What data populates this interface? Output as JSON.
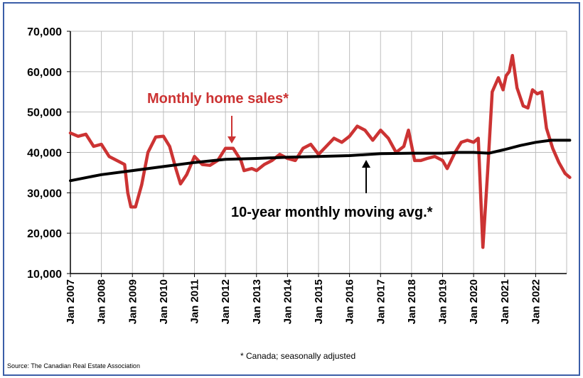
{
  "chart_data": {
    "type": "line",
    "title": "",
    "xlabel": "",
    "ylabel": "",
    "ylim": [
      10000,
      70000
    ],
    "y_ticks": [
      10000,
      20000,
      30000,
      40000,
      50000,
      60000,
      70000
    ],
    "y_tick_labels": [
      "10,000",
      "20,000",
      "30,000",
      "40,000",
      "50,000",
      "60,000",
      "70,000"
    ],
    "x_tick_labels": [
      "Jan 2007",
      "Jan 2008",
      "Jan 2009",
      "Jan 2010",
      "Jan 2011",
      "Jan 2012",
      "Jan 2013",
      "Jan 2014",
      "Jan 2015",
      "Jan 2016",
      "Jan 2017",
      "Jan 2018",
      "Jan 2019",
      "Jan 2020",
      "Jan 2021",
      "Jan 2022"
    ],
    "grid": true,
    "series": [
      {
        "name": "Monthly home sales*",
        "color": "#cc3333",
        "points": [
          [
            2007.0,
            44800
          ],
          [
            2007.25,
            44000
          ],
          [
            2007.5,
            44500
          ],
          [
            2007.75,
            41500
          ],
          [
            2008.0,
            42000
          ],
          [
            2008.25,
            39000
          ],
          [
            2008.5,
            38000
          ],
          [
            2008.75,
            37000
          ],
          [
            2008.85,
            30000
          ],
          [
            2008.95,
            26500
          ],
          [
            2009.1,
            26500
          ],
          [
            2009.3,
            32000
          ],
          [
            2009.5,
            40000
          ],
          [
            2009.75,
            43800
          ],
          [
            2010.0,
            44000
          ],
          [
            2010.2,
            41500
          ],
          [
            2010.4,
            36000
          ],
          [
            2010.55,
            32200
          ],
          [
            2010.75,
            34500
          ],
          [
            2011.0,
            39000
          ],
          [
            2011.25,
            37000
          ],
          [
            2011.5,
            36800
          ],
          [
            2011.75,
            38000
          ],
          [
            2012.0,
            41000
          ],
          [
            2012.25,
            41000
          ],
          [
            2012.5,
            38000
          ],
          [
            2012.6,
            35500
          ],
          [
            2012.85,
            36000
          ],
          [
            2013.0,
            35500
          ],
          [
            2013.25,
            37000
          ],
          [
            2013.5,
            38000
          ],
          [
            2013.75,
            39500
          ],
          [
            2014.0,
            38500
          ],
          [
            2014.25,
            38000
          ],
          [
            2014.5,
            41000
          ],
          [
            2014.75,
            42000
          ],
          [
            2015.0,
            39500
          ],
          [
            2015.25,
            41500
          ],
          [
            2015.5,
            43500
          ],
          [
            2015.75,
            42500
          ],
          [
            2016.0,
            44000
          ],
          [
            2016.25,
            46500
          ],
          [
            2016.5,
            45500
          ],
          [
            2016.75,
            43000
          ],
          [
            2017.0,
            45500
          ],
          [
            2017.25,
            43500
          ],
          [
            2017.5,
            40000
          ],
          [
            2017.75,
            41500
          ],
          [
            2017.9,
            45500
          ],
          [
            2018.1,
            38000
          ],
          [
            2018.3,
            38000
          ],
          [
            2018.5,
            38500
          ],
          [
            2018.75,
            39000
          ],
          [
            2019.0,
            38000
          ],
          [
            2019.15,
            36000
          ],
          [
            2019.4,
            40000
          ],
          [
            2019.6,
            42500
          ],
          [
            2019.8,
            43000
          ],
          [
            2020.0,
            42500
          ],
          [
            2020.15,
            43500
          ],
          [
            2020.3,
            16500
          ],
          [
            2020.45,
            35000
          ],
          [
            2020.6,
            55000
          ],
          [
            2020.8,
            58500
          ],
          [
            2020.95,
            55500
          ],
          [
            2021.05,
            59000
          ],
          [
            2021.15,
            60000
          ],
          [
            2021.25,
            64000
          ],
          [
            2021.4,
            56000
          ],
          [
            2021.6,
            51500
          ],
          [
            2021.75,
            51000
          ],
          [
            2021.9,
            55500
          ],
          [
            2022.05,
            54500
          ],
          [
            2022.2,
            55000
          ],
          [
            2022.35,
            46000
          ],
          [
            2022.55,
            41000
          ],
          [
            2022.75,
            37500
          ],
          [
            2022.95,
            34800
          ],
          [
            2023.1,
            33800
          ]
        ]
      },
      {
        "name": "10-year monthly moving avg.*",
        "color": "#000000",
        "points": [
          [
            2007.0,
            33000
          ],
          [
            2008.0,
            34500
          ],
          [
            2009.0,
            35500
          ],
          [
            2010.0,
            36500
          ],
          [
            2011.0,
            37500
          ],
          [
            2012.0,
            38300
          ],
          [
            2013.0,
            38500
          ],
          [
            2014.0,
            38800
          ],
          [
            2015.0,
            39000
          ],
          [
            2016.0,
            39200
          ],
          [
            2017.0,
            39700
          ],
          [
            2018.0,
            39800
          ],
          [
            2019.0,
            39800
          ],
          [
            2019.5,
            40000
          ],
          [
            2020.0,
            40000
          ],
          [
            2020.5,
            39800
          ],
          [
            2021.0,
            40700
          ],
          [
            2021.5,
            41700
          ],
          [
            2022.0,
            42500
          ],
          [
            2022.5,
            43000
          ],
          [
            2023.1,
            43000
          ]
        ]
      }
    ],
    "annotations": {
      "sales_label": "Monthly home sales*",
      "avg_label": "10-year monthly moving avg.*"
    }
  },
  "footnote": "* Canada; seasonally adjusted",
  "source": "Source: The Canadian Real Estate Association"
}
